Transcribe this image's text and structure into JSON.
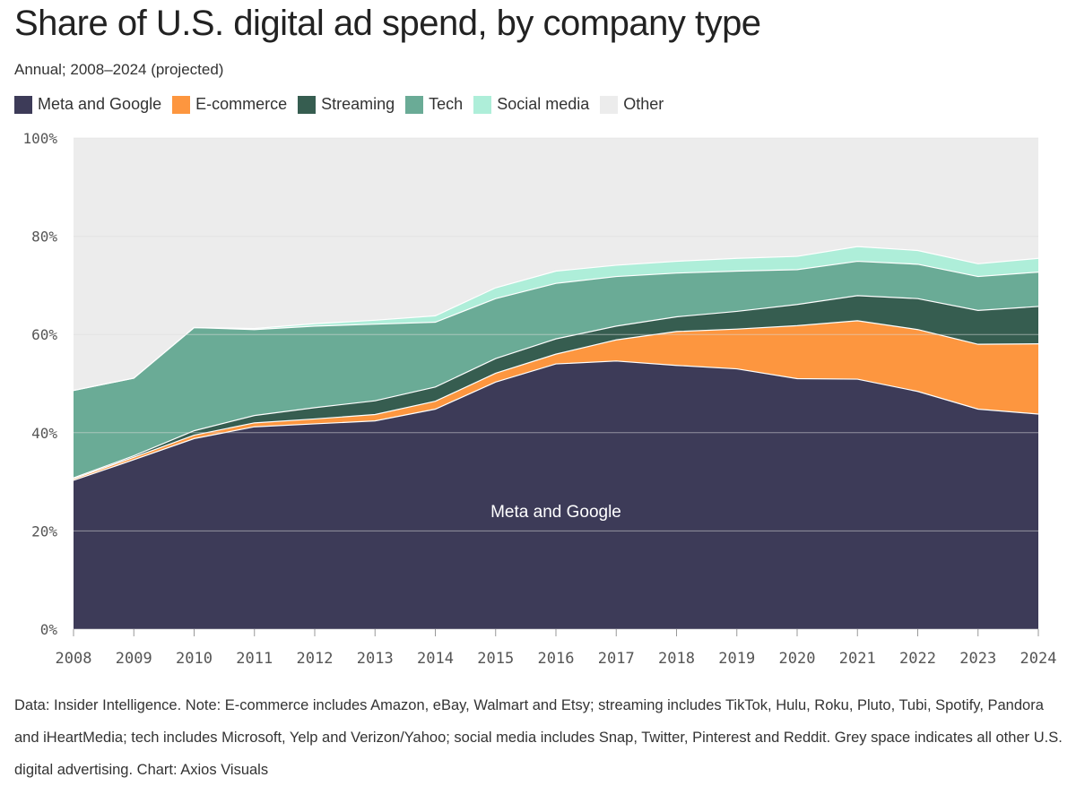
{
  "title": "Share of U.S. digital ad spend, by company type",
  "subtitle": "Annual; 2008–2024 (projected)",
  "footnote": "Data: Insider Intelligence. Note: E-commerce includes Amazon, eBay, Walmart and Etsy; streaming includes TikTok, Hulu, Roku, Pluto, Tubi, Spotify, Pandora and iHeartMedia; tech includes Microsoft, Yelp and Verizon/Yahoo; social media includes Snap, Twitter, Pinterest and Reddit. Grey space indicates all other U.S. digital advertising. Chart: Axios Visuals",
  "chart_data": {
    "type": "area",
    "stacked": true,
    "x": [
      2008,
      2009,
      2010,
      2011,
      2012,
      2013,
      2014,
      2015,
      2016,
      2017,
      2018,
      2019,
      2020,
      2021,
      2022,
      2023,
      2024
    ],
    "yticks": [
      "0%",
      "20%",
      "40%",
      "60%",
      "80%",
      "100%"
    ],
    "ylim": [
      0,
      100
    ],
    "grid": true,
    "legend_position": "top-left",
    "series": [
      {
        "name": "Meta and Google",
        "color": "#3d3b58",
        "values": [
          30.3,
          34.5,
          38.8,
          41.2,
          41.8,
          42.4,
          44.8,
          50.3,
          54.0,
          54.6,
          53.7,
          53.0,
          51.0,
          50.9,
          48.4,
          44.8,
          43.8
        ]
      },
      {
        "name": "E-commerce",
        "color": "#fd963f",
        "values": [
          0.3,
          0.5,
          0.7,
          0.8,
          1.0,
          1.3,
          1.6,
          1.8,
          2.0,
          4.3,
          6.9,
          8.1,
          10.8,
          11.9,
          12.6,
          13.2,
          14.3
        ]
      },
      {
        "name": "Streaming",
        "color": "#365d50",
        "values": [
          0.2,
          0.3,
          0.9,
          1.5,
          2.3,
          2.8,
          2.9,
          3.0,
          3.1,
          2.8,
          3.0,
          3.6,
          4.3,
          5.1,
          6.3,
          6.9,
          7.6
        ]
      },
      {
        "name": "Tech",
        "color": "#6aab96",
        "values": [
          17.8,
          15.8,
          21.0,
          17.5,
          16.6,
          15.6,
          13.2,
          12.2,
          11.3,
          10.1,
          8.9,
          8.2,
          7.1,
          7.0,
          7.0,
          6.9,
          7.0
        ]
      },
      {
        "name": "Social media",
        "color": "#aeeed9",
        "values": [
          0.0,
          0.0,
          0.0,
          0.2,
          0.5,
          0.8,
          1.3,
          2.2,
          2.5,
          2.3,
          2.4,
          2.6,
          2.7,
          3.0,
          2.8,
          2.6,
          2.8
        ]
      },
      {
        "name": "Other",
        "color": "#ececec",
        "values": [
          51.4,
          48.9,
          38.6,
          38.8,
          37.8,
          37.1,
          36.2,
          30.5,
          27.1,
          25.9,
          25.1,
          24.5,
          24.1,
          22.1,
          22.9,
          25.6,
          24.5
        ]
      }
    ],
    "annotations": [
      {
        "text": "Meta and Google",
        "series": "Meta and Google"
      }
    ]
  }
}
